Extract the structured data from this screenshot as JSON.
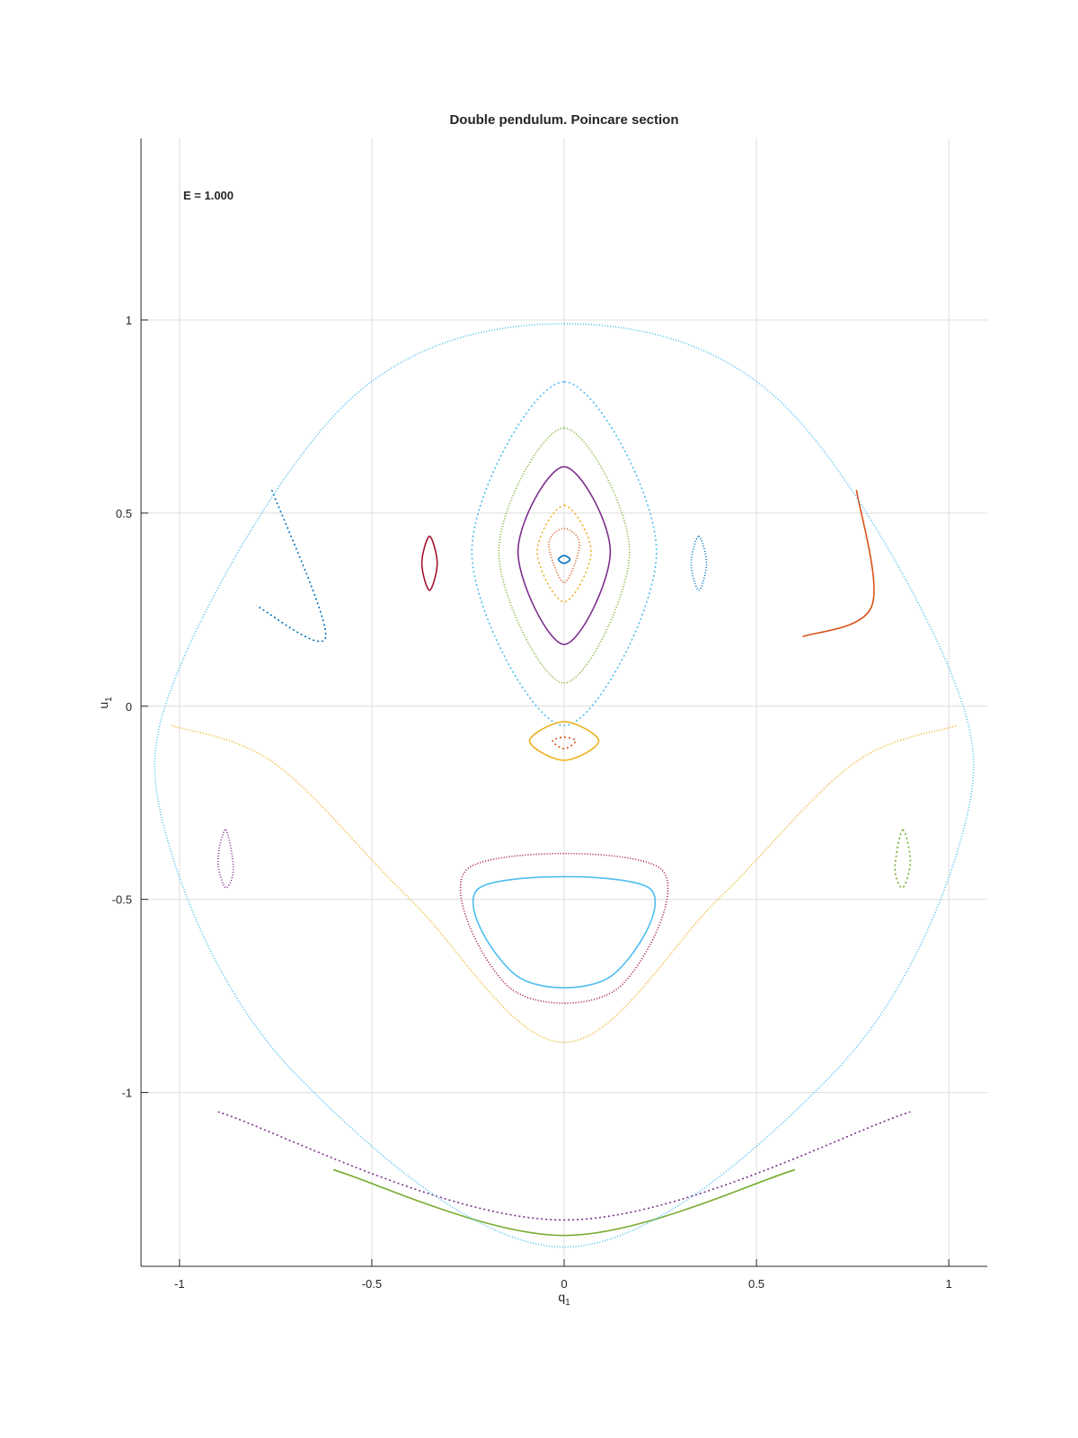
{
  "chart_data": {
    "type": "scatter",
    "title": "Double pendulum. Poincare section",
    "xlabel": "q",
    "xlabel_sub": "1",
    "ylabel": "u",
    "ylabel_sub": "1",
    "annotation": "E = 1.000",
    "xlim": [
      -1.1,
      1.1
    ],
    "ylim": [
      -1.45,
      1.47
    ],
    "xticks": [
      -1,
      -0.5,
      0,
      0.5,
      1
    ],
    "xtick_labels": [
      "-1",
      "-0.5",
      "0",
      "0.5",
      "1"
    ],
    "yticks": [
      -1,
      -0.5,
      0,
      0.5,
      1
    ],
    "ytick_labels": [
      "-1",
      "-0.5",
      "0",
      "0.5",
      "1"
    ],
    "grid": true,
    "colors": [
      "#0072BD",
      "#D95319",
      "#EDB120",
      "#7E2F8E",
      "#77AC30",
      "#4DBEEE",
      "#A2142F"
    ],
    "series": [
      {
        "values": [
          [
            0,
            0.39
          ],
          [
            0.015,
            0.38
          ],
          [
            0,
            0.37
          ],
          [
            -0.015,
            0.38
          ]
        ]
      },
      {
        "values": [
          [
            0,
            0.46
          ],
          [
            0.04,
            0.42
          ],
          [
            0,
            0.32
          ],
          [
            -0.04,
            0.42
          ]
        ]
      },
      {
        "values": [
          [
            0,
            0.52
          ],
          [
            0.07,
            0.4
          ],
          [
            0,
            0.27
          ],
          [
            -0.07,
            0.4
          ]
        ]
      },
      {
        "values": [
          [
            0,
            0.62
          ],
          [
            0.12,
            0.4
          ],
          [
            0,
            0.16
          ],
          [
            -0.12,
            0.4
          ]
        ]
      },
      {
        "values": [
          [
            0,
            0.72
          ],
          [
            0.17,
            0.4
          ],
          [
            0,
            0.06
          ],
          [
            -0.17,
            0.4
          ]
        ]
      },
      {
        "values": [
          [
            0,
            0.84
          ],
          [
            0.24,
            0.4
          ],
          [
            0,
            -0.05
          ],
          [
            -0.24,
            0.4
          ]
        ]
      },
      {
        "values": [
          [
            -0.35,
            0.44
          ],
          [
            -0.33,
            0.37
          ],
          [
            -0.35,
            0.3
          ],
          [
            -0.37,
            0.37
          ]
        ]
      },
      {
        "values": [
          [
            0.35,
            0.44
          ],
          [
            0.37,
            0.37
          ],
          [
            0.35,
            0.3
          ],
          [
            0.33,
            0.37
          ]
        ]
      },
      {
        "values": [
          [
            0,
            -0.08
          ],
          [
            0.03,
            -0.09
          ],
          [
            0,
            -0.11
          ],
          [
            -0.03,
            -0.09
          ]
        ]
      },
      {
        "values": [
          [
            0,
            -0.04
          ],
          [
            0.09,
            -0.09
          ],
          [
            0,
            -0.14
          ],
          [
            -0.09,
            -0.09
          ]
        ]
      },
      {
        "values": [
          [
            -0.88,
            -0.32
          ],
          [
            -0.86,
            -0.42
          ],
          [
            -0.88,
            -0.47
          ],
          [
            -0.9,
            -0.4
          ]
        ]
      },
      {
        "values": [
          [
            0.88,
            -0.32
          ],
          [
            0.9,
            -0.4
          ],
          [
            0.88,
            -0.47
          ],
          [
            0.86,
            -0.42
          ]
        ]
      },
      {
        "values": [
          [
            -0.22,
            -0.47
          ],
          [
            0.22,
            -0.47
          ],
          [
            0.12,
            -0.7
          ],
          [
            -0.12,
            -0.7
          ]
        ]
      },
      {
        "values": [
          [
            -0.25,
            -0.42
          ],
          [
            0.25,
            -0.42
          ],
          [
            0.14,
            -0.73
          ],
          [
            -0.14,
            -0.73
          ]
        ]
      },
      {
        "values": [
          [
            -0.76,
            0.56
          ],
          [
            -0.62,
            0.18
          ],
          [
            -0.8,
            0.26
          ]
        ]
      },
      {
        "values": [
          [
            0.76,
            0.56
          ],
          [
            0.8,
            0.26
          ],
          [
            0.62,
            0.18
          ]
        ]
      },
      {
        "values": [
          [
            -1.02,
            -0.05
          ],
          [
            -0.75,
            -0.15
          ],
          [
            -0.4,
            -0.5
          ],
          [
            0,
            -0.87
          ],
          [
            0.4,
            -0.5
          ],
          [
            0.75,
            -0.15
          ],
          [
            1.02,
            -0.05
          ]
        ]
      },
      {
        "values": [
          [
            -0.9,
            -1.05
          ],
          [
            0,
            -1.33
          ],
          [
            0.9,
            -1.05
          ]
        ]
      },
      {
        "values": [
          [
            -0.6,
            -1.2
          ],
          [
            0,
            -1.37
          ],
          [
            0.6,
            -1.2
          ]
        ]
      },
      {
        "values": [
          [
            0,
            0.99
          ],
          [
            0.55,
            0.8
          ],
          [
            1.0,
            0.1
          ],
          [
            1.03,
            -0.35
          ],
          [
            0.7,
            -0.95
          ],
          [
            0,
            -1.4
          ],
          [
            -0.7,
            -0.95
          ],
          [
            -1.03,
            -0.35
          ],
          [
            -1.0,
            0.1
          ],
          [
            -0.55,
            0.8
          ]
        ]
      }
    ]
  }
}
